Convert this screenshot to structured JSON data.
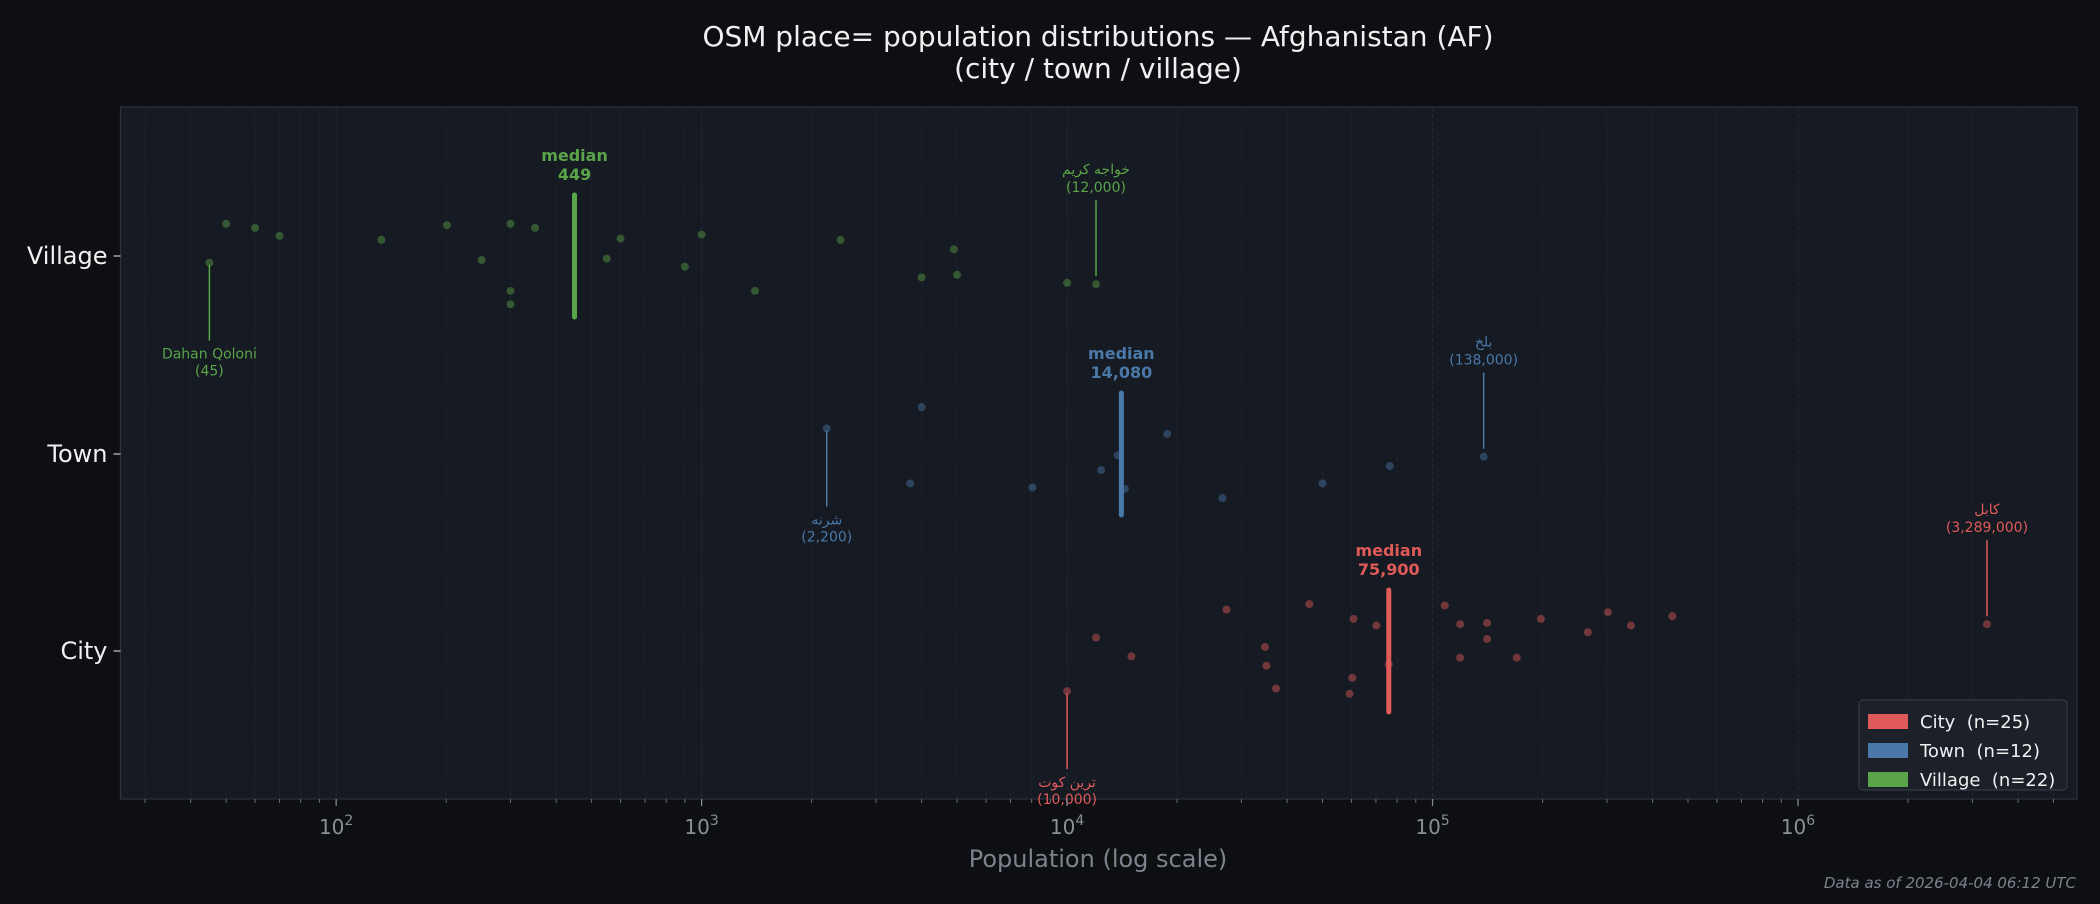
{
  "chart_data": {
    "type": "scatter",
    "title": "OSM place= population distributions — Afghanistan (AF)",
    "subtitle": "(city / town / village)",
    "xlabel": "Population (log scale)",
    "ylabel": "",
    "x_scale": "log",
    "xlim": [
      25.7,
      5800000
    ],
    "x_ticks": [
      {
        "value": 100,
        "base": "10",
        "exp": "2"
      },
      {
        "value": 1000,
        "base": "10",
        "exp": "3"
      },
      {
        "value": 10000,
        "base": "10",
        "exp": "4"
      },
      {
        "value": 100000,
        "base": "10",
        "exp": "5"
      },
      {
        "value": 1000000,
        "base": "10",
        "exp": "6"
      }
    ],
    "categories": [
      "Village",
      "Town",
      "City"
    ],
    "grid": "vertical minor, dashed",
    "legend_position": "bottom-right",
    "median_label": "median",
    "series": [
      {
        "name": "City  (n=25)",
        "category": "City",
        "color": "#e05a5a",
        "median": 75900,
        "median_text": "75,900",
        "values": [
          10000,
          12000,
          15000,
          27300,
          34800,
          35100,
          37300,
          46000,
          59300,
          60300,
          60800,
          70200,
          75900,
          108000,
          119000,
          119000,
          141000,
          141000,
          170000,
          198000,
          266000,
          302000,
          349000,
          453000,
          3289000
        ],
        "annotations": [
          {
            "value": 10000,
            "name": "ترین کوت",
            "text": "(10,000)",
            "side": "below"
          },
          {
            "value": 3289000,
            "name": "کابل",
            "text": "(3,289,000)",
            "side": "above"
          }
        ]
      },
      {
        "name": "Town  (n=12)",
        "category": "Town",
        "color": "#4a78a8",
        "median": 14080,
        "median_text": "14,080",
        "values": [
          2200,
          3720,
          4000,
          8040,
          12400,
          13760,
          14400,
          18800,
          26600,
          50000,
          76400,
          138000
        ],
        "annotations": [
          {
            "value": 2200,
            "name": "شرنه",
            "text": "(2,200)",
            "side": "below"
          },
          {
            "value": 138000,
            "name": "بلخ",
            "text": "(138,000)",
            "side": "above"
          }
        ]
      },
      {
        "name": "Village  (n=22)",
        "category": "Village",
        "color": "#5aa54a",
        "median": 449,
        "median_text": "449",
        "values": [
          45,
          50,
          60,
          70,
          133,
          201,
          250,
          300,
          300,
          300,
          350,
          550,
          600,
          900,
          1000,
          1400,
          2400,
          4000,
          4900,
          5000,
          10000,
          12000
        ],
        "annotations": [
          {
            "value": 45,
            "name": "Dahan Qoloni",
            "text": "(45)",
            "side": "below"
          },
          {
            "value": 12000,
            "name": "خواجه کریم",
            "text": "(12,000)",
            "side": "above"
          }
        ]
      }
    ]
  },
  "footer": "Data as of 2026-04-04 06:12 UTC",
  "colors": {
    "background": "#0d0f13",
    "plot_background": "#161a22",
    "text": "#e8e8e8",
    "muted": "#8a8f99"
  }
}
